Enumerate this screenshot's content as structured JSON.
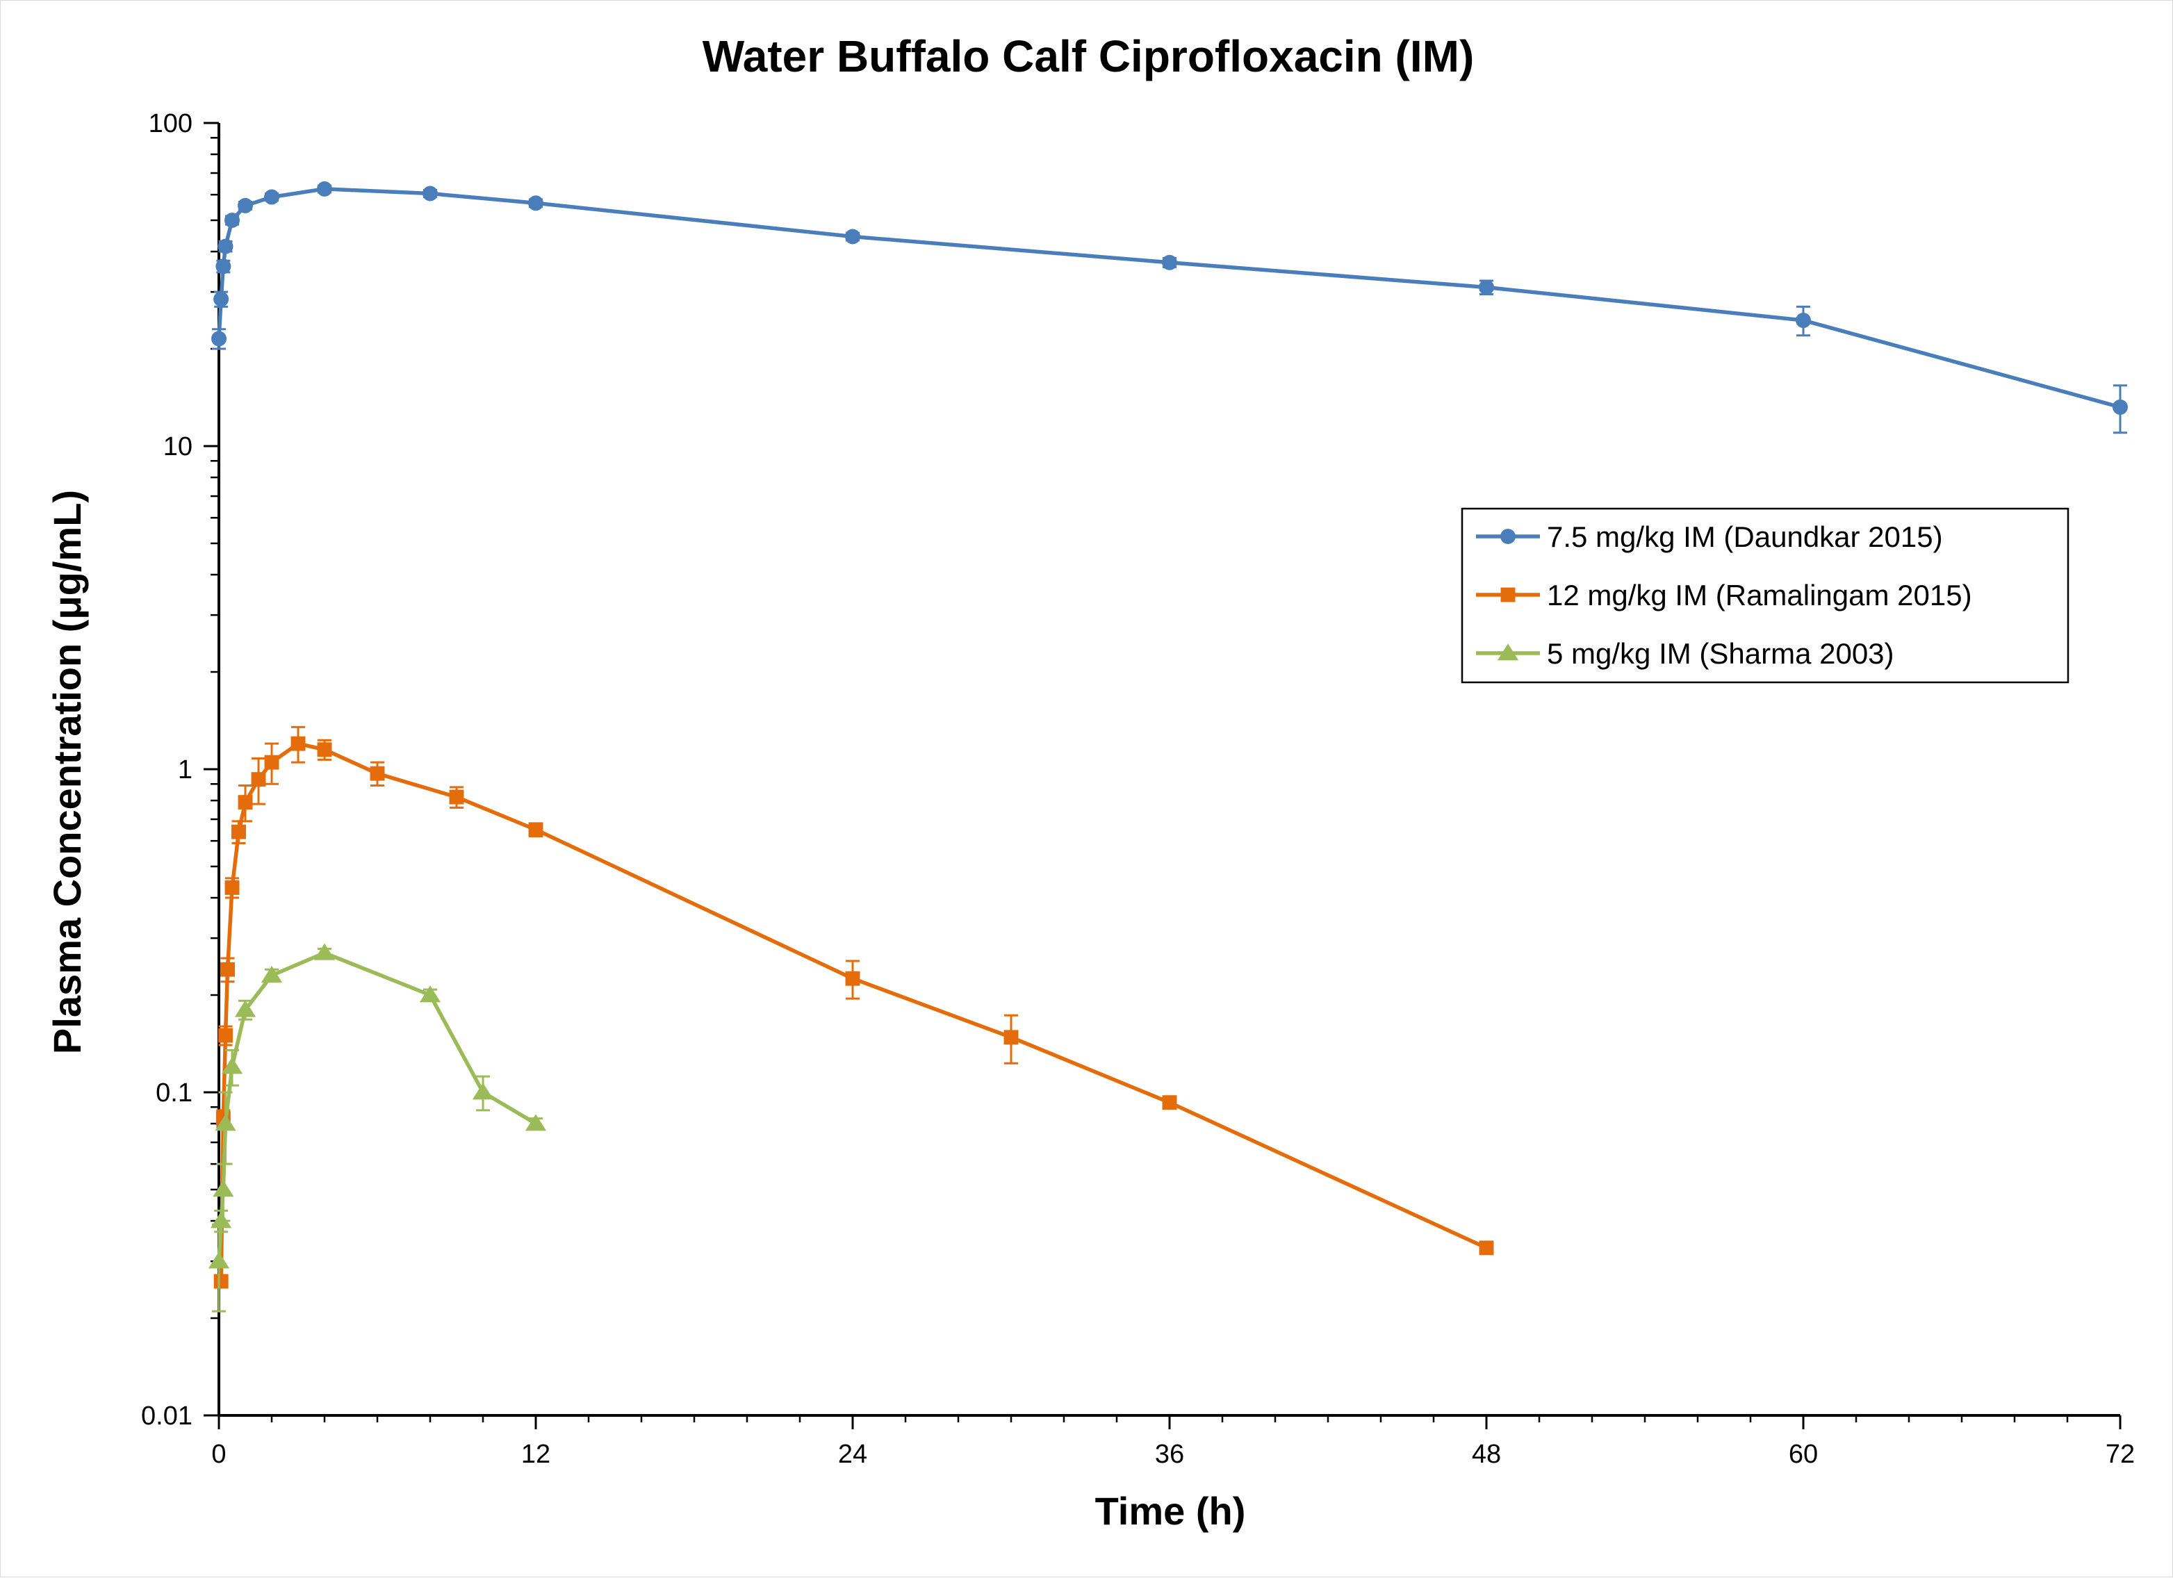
{
  "chart_data": {
    "type": "line",
    "title": "Water Buffalo Calf Ciprofloxacin (IM)",
    "xlabel": "Time (h)",
    "ylabel": "Plasma Concentration (μg/mL)",
    "xlim": [
      0,
      72
    ],
    "ylim": [
      0.01,
      100
    ],
    "yscale": "log",
    "xticks": [
      "0",
      "12",
      "24",
      "36",
      "48",
      "60",
      "72"
    ],
    "yticks": [
      "0.01",
      "0.1",
      "1",
      "10",
      "100"
    ],
    "grid": false,
    "legend_position": "right",
    "series": [
      {
        "name": "7.5 mg/kg IM (Daundkar 2015)",
        "color": "#4a7ebb",
        "marker": "circle",
        "points": [
          {
            "x": 0.0,
            "y": 21.5,
            "err": 1.5
          },
          {
            "x": 0.083,
            "y": 28.5,
            "err": 1.5
          },
          {
            "x": 0.167,
            "y": 36,
            "err": 1.5
          },
          {
            "x": 0.25,
            "y": 41.5,
            "err": 1.5
          },
          {
            "x": 0.5,
            "y": 50,
            "err": 1.5
          },
          {
            "x": 1,
            "y": 55.5,
            "err": 1.5
          },
          {
            "x": 2,
            "y": 59,
            "err": 1.5
          },
          {
            "x": 4,
            "y": 62.5,
            "err": 1.5
          },
          {
            "x": 8,
            "y": 60.5,
            "err": 1.5
          },
          {
            "x": 12,
            "y": 56.5,
            "err": 1.5
          },
          {
            "x": 24,
            "y": 44.5,
            "err": 1.2
          },
          {
            "x": 36,
            "y": 37,
            "err": 1.2
          },
          {
            "x": 48,
            "y": 31,
            "err": 1.5
          },
          {
            "x": 60,
            "y": 24.5,
            "err": 2.5
          },
          {
            "x": 72,
            "y": 13.2,
            "err": 2.2
          }
        ]
      },
      {
        "name": "12 mg/kg IM (Ramalingam 2015)",
        "color": "#e46c0a",
        "marker": "square",
        "points": [
          {
            "x": 0.083,
            "y": 0.026,
            "err": 0.001
          },
          {
            "x": 0.167,
            "y": 0.083,
            "err": 0.005
          },
          {
            "x": 0.25,
            "y": 0.15,
            "err": 0.01
          },
          {
            "x": 0.33,
            "y": 0.24,
            "err": 0.02
          },
          {
            "x": 0.5,
            "y": 0.43,
            "err": 0.03
          },
          {
            "x": 0.75,
            "y": 0.64,
            "err": 0.05
          },
          {
            "x": 1,
            "y": 0.79,
            "err": 0.1
          },
          {
            "x": 1.5,
            "y": 0.93,
            "err": 0.15
          },
          {
            "x": 2,
            "y": 1.05,
            "err": 0.15
          },
          {
            "x": 3,
            "y": 1.2,
            "err": 0.15
          },
          {
            "x": 4,
            "y": 1.15,
            "err": 0.08
          },
          {
            "x": 6,
            "y": 0.97,
            "err": 0.08
          },
          {
            "x": 9,
            "y": 0.82,
            "err": 0.06
          },
          {
            "x": 12,
            "y": 0.65,
            "err": 0.03
          },
          {
            "x": 24,
            "y": 0.225,
            "err": 0.03
          },
          {
            "x": 30,
            "y": 0.148,
            "err": 0.025
          },
          {
            "x": 36,
            "y": 0.093,
            "err": 0.003
          },
          {
            "x": 48,
            "y": 0.033,
            "err": 0.001
          }
        ]
      },
      {
        "name": "5 mg/kg IM (Sharma 2003)",
        "color": "#9bbb59",
        "marker": "triangle",
        "points": [
          {
            "x": 0.0,
            "y": 0.03,
            "err": 0.009
          },
          {
            "x": 0.083,
            "y": 0.04,
            "err": 0.003
          },
          {
            "x": 0.167,
            "y": 0.05,
            "err": 0.01
          },
          {
            "x": 0.25,
            "y": 0.08,
            "err": 0.02
          },
          {
            "x": 0.5,
            "y": 0.12,
            "err": 0.015
          },
          {
            "x": 1,
            "y": 0.18,
            "err": 0.012
          },
          {
            "x": 2,
            "y": 0.23,
            "err": 0.01
          },
          {
            "x": 4,
            "y": 0.27,
            "err": 0.008
          },
          {
            "x": 8,
            "y": 0.2,
            "err": 0.008
          },
          {
            "x": 10,
            "y": 0.1,
            "err": 0.012
          },
          {
            "x": 12,
            "y": 0.08,
            "err": 0.003
          }
        ]
      }
    ]
  }
}
